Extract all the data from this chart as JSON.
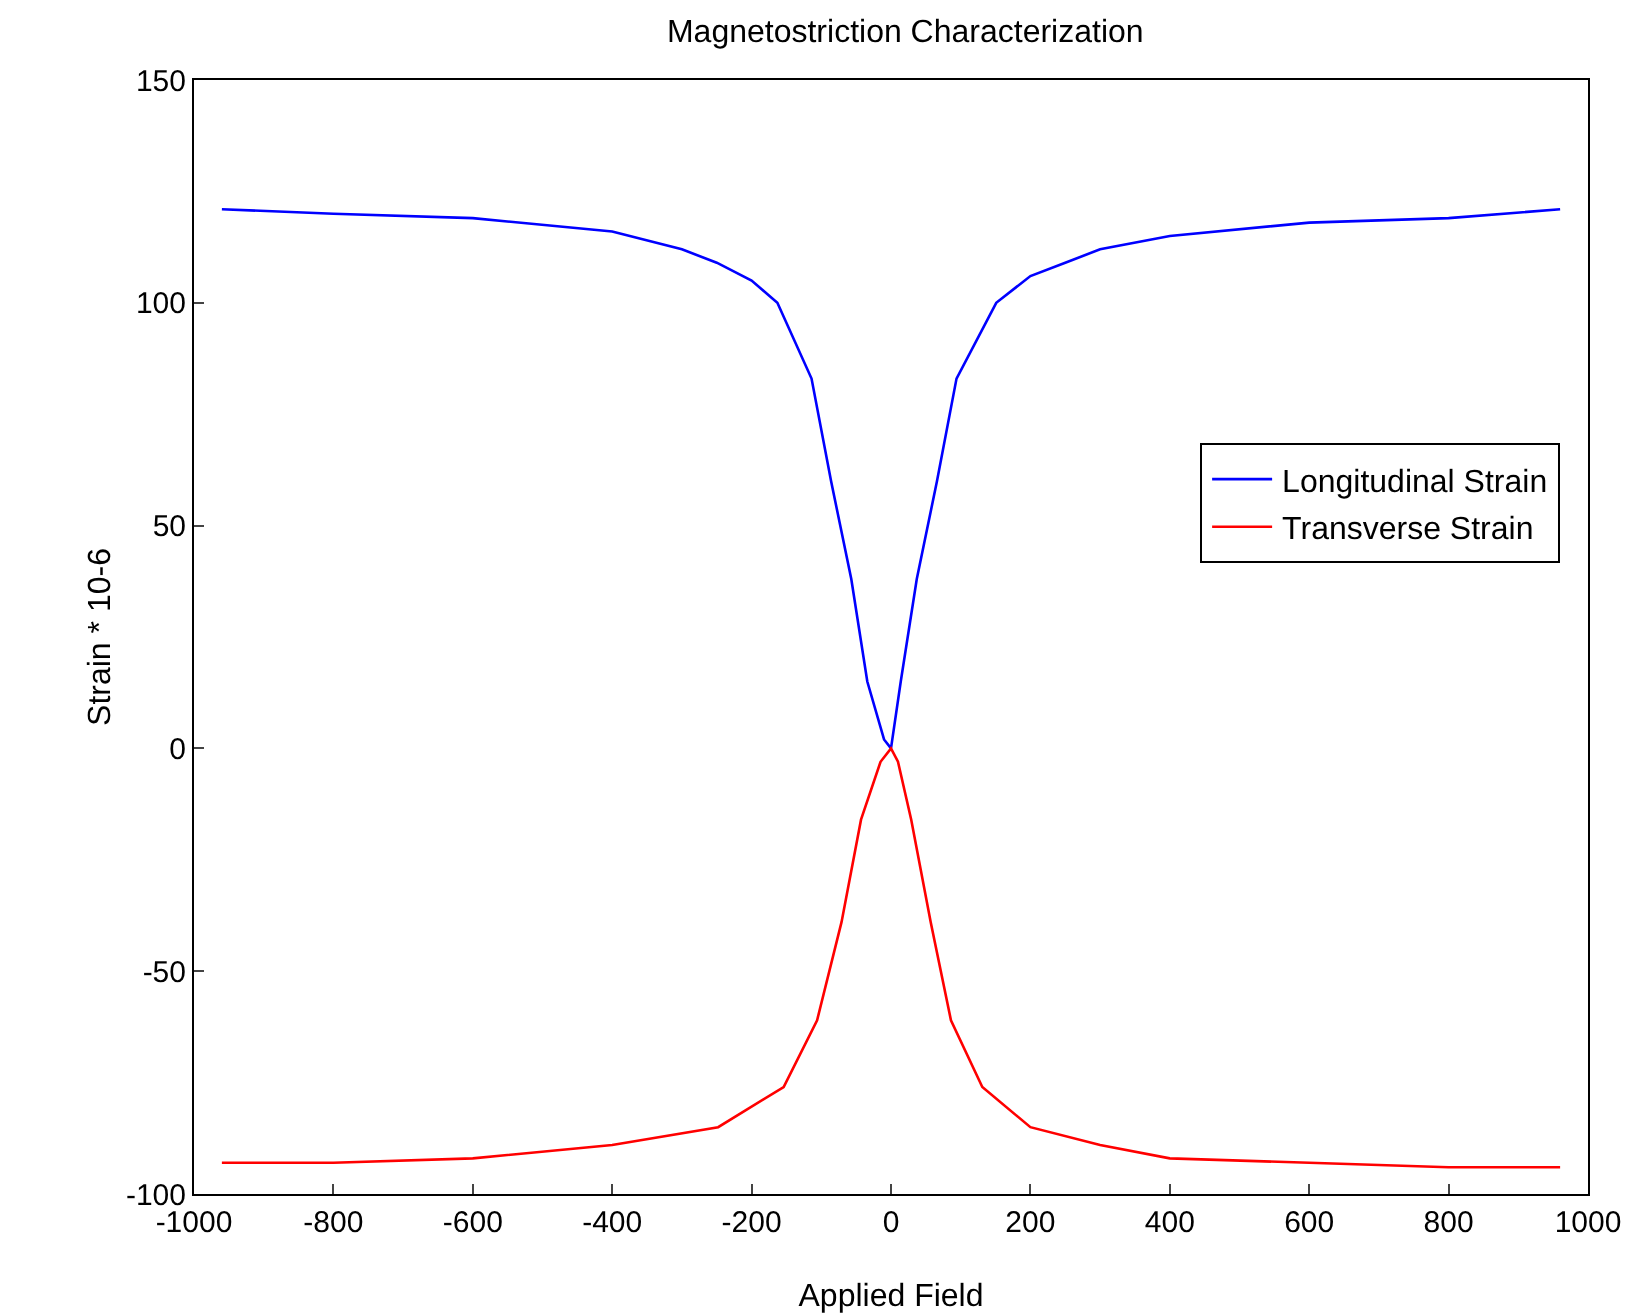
{
  "chart_data": {
    "type": "line",
    "title": "Magnetostriction Characterization",
    "xlabel": "Applied Field",
    "ylabel": "Strain * 10-6",
    "xlim": [
      -1000,
      1000
    ],
    "xticks": [
      -1000,
      -800,
      -600,
      -400,
      -200,
      0,
      200,
      400,
      600,
      800,
      1000
    ],
    "ylim": [
      -100,
      150
    ],
    "yticks": [
      -100,
      -50,
      0,
      50,
      100,
      150
    ],
    "grid": false,
    "legend": "right",
    "marker": "none",
    "line_style": "solid",
    "series": [
      {
        "name": "Longitudinal Strain",
        "color": "#0000ff",
        "x": [
          -960,
          -800,
          -600,
          -400,
          -300,
          -250,
          -200,
          -163,
          -114,
          -86,
          -57,
          -34,
          -10,
          0,
          14,
          37,
          66,
          94,
          151,
          200,
          250,
          300,
          400,
          600,
          800,
          960
        ],
        "values": [
          121,
          120,
          119,
          116,
          112,
          109,
          105,
          100,
          83,
          60,
          38,
          15,
          2,
          0,
          15,
          38,
          60,
          83,
          100,
          106,
          109,
          112,
          115,
          118,
          119,
          121
        ]
      },
      {
        "name": "Transverse Strain",
        "color": "#ff0000",
        "x": [
          -960,
          -800,
          -600,
          -400,
          -248,
          -154,
          -106,
          -71,
          -43,
          -15,
          0,
          10,
          29,
          57,
          86,
          131,
          200,
          300,
          400,
          600,
          800,
          960
        ],
        "values": [
          -93,
          -93,
          -92,
          -89,
          -85,
          -76,
          -61,
          -39,
          -16,
          -3,
          0,
          -3,
          -16,
          -39,
          -61,
          -76,
          -85,
          -89,
          -92,
          -93,
          -94,
          -94
        ]
      }
    ]
  }
}
